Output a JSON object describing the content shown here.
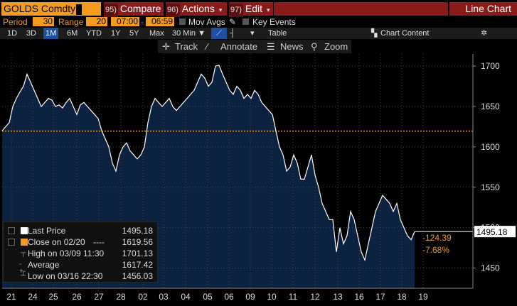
{
  "toolbar": {
    "ticker": "GOLDS Comdty",
    "compare": {
      "num": "95)",
      "label": "Compare"
    },
    "actions": {
      "num": "96)",
      "label": "Actions"
    },
    "edit": {
      "num": "97)",
      "label": "Edit"
    },
    "chart_type": "Line Chart"
  },
  "settings": {
    "period_label": "Period",
    "period_value": "30",
    "range_label": "Range",
    "range_value": "20",
    "start_time": "07:00",
    "end_time": "06:59",
    "mov_avgs": "Mov Avgs",
    "key_events": "Key Events"
  },
  "timeframes": [
    "1D",
    "3D",
    "1M",
    "6M",
    "YTD",
    "1Y",
    "5Y",
    "Max"
  ],
  "active_timeframe": "1M",
  "interval": "30 Min",
  "table_label": "Table",
  "chart_content_label": "Chart Content",
  "tools": {
    "track": "Track",
    "annotate": "Annotate",
    "news": "News",
    "zoom": "Zoom"
  },
  "stats": {
    "last_price_label": "Last Price",
    "last_price": "1495.18",
    "close_label": "Close on 02/20",
    "close_dash": "----",
    "close_value": "1619.56",
    "high_label": "High on 03/09 11:30",
    "high_value": "1701.13",
    "average_label": "Average",
    "average_value": "1617.42",
    "low_label": "Low on 03/16 22:30",
    "low_value": "1456.03"
  },
  "price_tag": "1495.18",
  "change_abs": "-124.39",
  "change_pct": "-7.68%",
  "colors": {
    "accent": "#f39c1f",
    "menu": "#8b1a1a",
    "area": "#0b2240",
    "line": "#ffffff"
  },
  "chart_data": {
    "type": "area",
    "x_ticks": [
      "21",
      "24",
      "25",
      "26",
      "27",
      "28",
      "02",
      "03",
      "04",
      "05",
      "06",
      "09",
      "10",
      "11",
      "12",
      "13",
      "16",
      "17",
      "18",
      "19"
    ],
    "y_ticks": [
      1450,
      1500,
      1550,
      1600,
      1650,
      1700
    ],
    "ylim": [
      1425,
      1715
    ],
    "reference_close": 1619.56,
    "y": [
      1620,
      1625,
      1630,
      1650,
      1660,
      1668,
      1675,
      1690,
      1680,
      1670,
      1660,
      1650,
      1655,
      1660,
      1658,
      1650,
      1652,
      1648,
      1655,
      1660,
      1650,
      1640,
      1652,
      1655,
      1650,
      1645,
      1640,
      1635,
      1620,
      1610,
      1600,
      1580,
      1570,
      1590,
      1600,
      1605,
      1595,
      1590,
      1585,
      1590,
      1600,
      1630,
      1650,
      1660,
      1655,
      1650,
      1655,
      1660,
      1650,
      1645,
      1650,
      1655,
      1660,
      1665,
      1670,
      1680,
      1690,
      1685,
      1675,
      1680,
      1700,
      1701,
      1690,
      1680,
      1670,
      1665,
      1675,
      1670,
      1660,
      1665,
      1660,
      1670,
      1665,
      1655,
      1650,
      1645,
      1640,
      1620,
      1600,
      1590,
      1570,
      1575,
      1590,
      1580,
      1560,
      1560,
      1575,
      1590,
      1565,
      1550,
      1530,
      1520,
      1510,
      1510,
      1470,
      1500,
      1480,
      1490,
      1520,
      1510,
      1490,
      1470,
      1460,
      1480,
      1500,
      1520,
      1530,
      1540,
      1535,
      1530,
      1520,
      1530,
      1510,
      1500,
      1490,
      1485,
      1495
    ],
    "last": 1495.18
  }
}
